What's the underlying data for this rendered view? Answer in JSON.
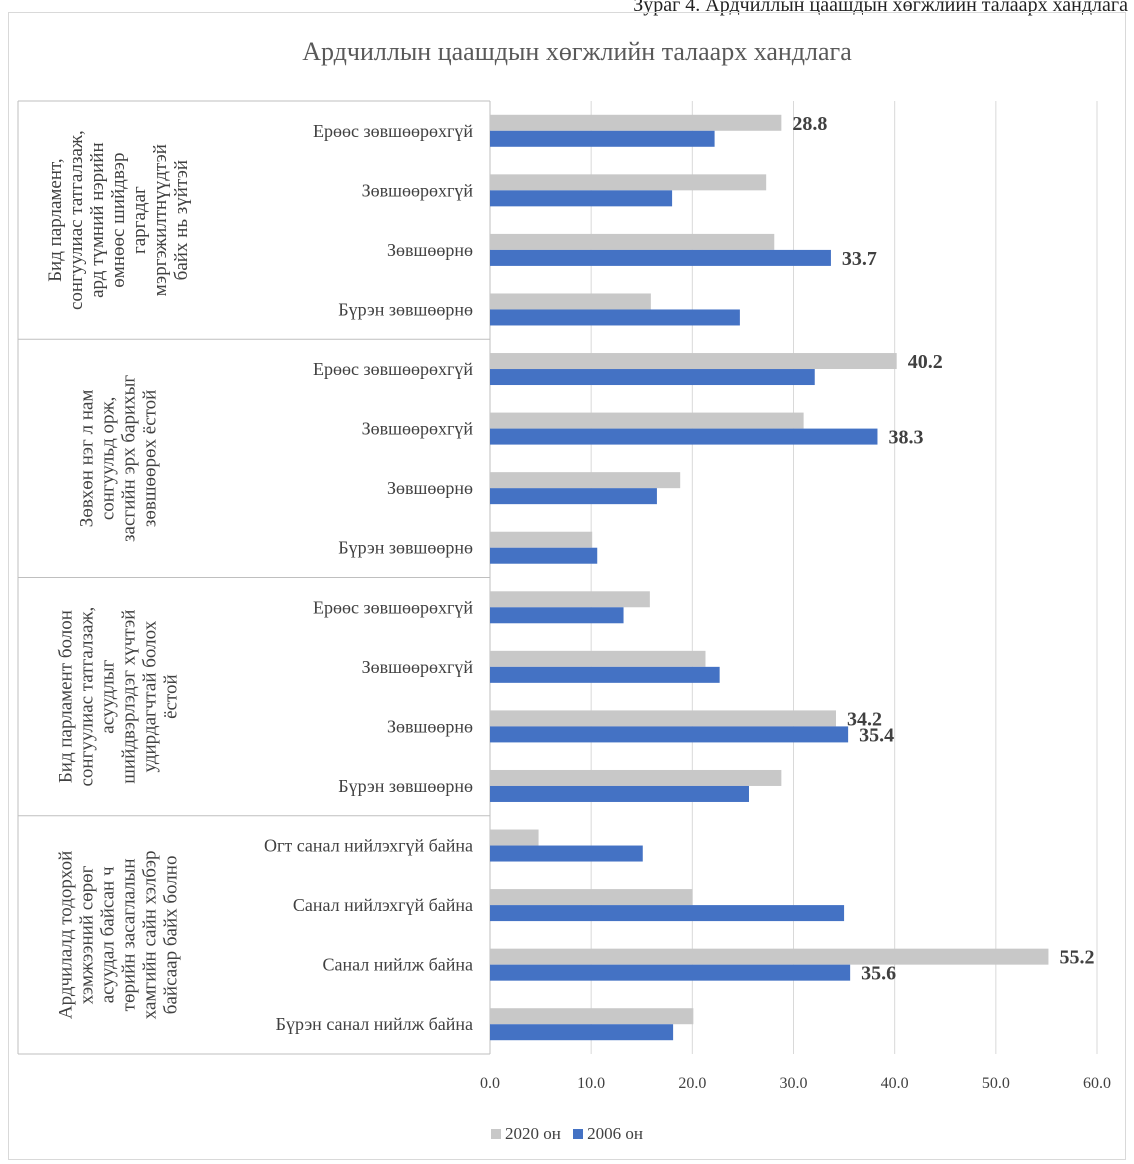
{
  "figure_caption": "Зураг 4. Ардчиллын цаашдын хөгжлийн талаарх хандлага",
  "chart_data": {
    "type": "bar",
    "orientation": "horizontal",
    "title": "Ардчиллын цаашдын хөгжлийн талаарх хандлага",
    "xlim": [
      0,
      60
    ],
    "x_ticks": [
      "0.0",
      "10.0",
      "20.0",
      "30.0",
      "40.0",
      "50.0",
      "60.0"
    ],
    "grid": true,
    "legend_position": "bottom",
    "colors": {
      "2020 он": "#c8c8c8",
      "2006 он": "#4472c4"
    },
    "groups": [
      {
        "label": "Бид парламент, сонгуулиас татгалзаж, ард түмний нэрийн өмнөөс шийдвэр гаргадаг мэргэжилтнүүдтэй байх нь зүйтэй",
        "label_lines": [
          "Бид парламент,",
          "сонгуулиас татгалзаж,",
          "ард түмний нэрийн",
          "өмнөөс шийдвэр",
          "гаргадаг",
          "мэргэжилтнүүдтэй",
          "байх нь зүйтэй"
        ],
        "categories": [
          "Ерөөс зөвшөөрөхгүй",
          "Зөвшөөрөхгүй",
          "Зөвшөөрнө",
          "Бүрэн зөвшөөрнө"
        ],
        "series": [
          {
            "name": "2020 он",
            "values": [
              28.8,
              27.3,
              28.1,
              15.9
            ]
          },
          {
            "name": "2006 он",
            "values": [
              22.2,
              18.0,
              33.7,
              24.7
            ]
          }
        ]
      },
      {
        "label": "Зөвхөн нэг л нам сонгуульд орж, засгийн эрх барихыг зөвшөөрөх ёстой",
        "label_lines": [
          "Зөвхөн нэг л нам",
          "сонгуульд орж,",
          "засгийн эрх барихыг",
          "зөвшөөрөх ёстой"
        ],
        "categories": [
          "Ерөөс зөвшөөрөхгүй",
          "Зөвшөөрөхгүй",
          "Зөвшөөрнө",
          "Бүрэн зөвшөөрнө"
        ],
        "series": [
          {
            "name": "2020 он",
            "values": [
              40.2,
              31.0,
              18.8,
              10.1
            ]
          },
          {
            "name": "2006 он",
            "values": [
              32.1,
              38.3,
              16.5,
              10.6
            ]
          }
        ]
      },
      {
        "label": "Бид парламент болон сонгуулиас татгалзаж, асуудлыг шийдвэрлэдэг хүчтэй удирдагчтай болох ёстой",
        "label_lines": [
          "Бид парламент болон",
          "сонгуулиас татгалзаж,",
          "асуудлыг",
          "шийдвэрлэдэг хүчтэй",
          "удирдагчтай болох",
          "ёстой"
        ],
        "categories": [
          "Ерөөс зөвшөөрөхгүй",
          "Зөвшөөрөхгүй",
          "Зөвшөөрнө",
          "Бүрэн зөвшөөрнө"
        ],
        "series": [
          {
            "name": "2020 он",
            "values": [
              15.8,
              21.3,
              34.2,
              28.8
            ]
          },
          {
            "name": "2006 он",
            "values": [
              13.2,
              22.7,
              35.4,
              25.6
            ]
          }
        ]
      },
      {
        "label": "Ардчилалд тодорхой хэмжээний сөрөг асуудал байсан ч төрийн засаглалын хамгийн сайн хэлбэр байсаар байх болно",
        "label_lines": [
          "Ардчилалд тодорхой",
          "хэмжээний сөрөг",
          "асуудал байсан ч",
          "төрийн засаглалын",
          "хамгийн сайн хэлбэр",
          "байсаар байх болно"
        ],
        "categories": [
          "Огт санал нийлэхгүй байна",
          "Санал нийлэхгүй байна",
          "Санал нийлж байна",
          "Бүрэн санал нийлж байна"
        ],
        "series": [
          {
            "name": "2020 он",
            "values": [
              4.8,
              20.0,
              55.2,
              20.1
            ]
          },
          {
            "name": "2006 он",
            "values": [
              15.1,
              35.0,
              35.6,
              18.1
            ]
          }
        ]
      }
    ],
    "data_labels": [
      {
        "group": 0,
        "category": 0,
        "series": "2020 он",
        "text": "28.8"
      },
      {
        "group": 0,
        "category": 2,
        "series": "2006 он",
        "text": "33.7"
      },
      {
        "group": 1,
        "category": 0,
        "series": "2020 он",
        "text": "40.2"
      },
      {
        "group": 1,
        "category": 1,
        "series": "2006 он",
        "text": "38.3"
      },
      {
        "group": 2,
        "category": 2,
        "series": "2020 он",
        "text": "34.2"
      },
      {
        "group": 2,
        "category": 2,
        "series": "2006 он",
        "text": "35.4"
      },
      {
        "group": 3,
        "category": 2,
        "series": "2020 он",
        "text": "55.2"
      },
      {
        "group": 3,
        "category": 2,
        "series": "2006 он",
        "text": "35.6"
      }
    ]
  },
  "legend": {
    "items": [
      {
        "label": "2020 он",
        "color": "#c8c8c8"
      },
      {
        "label": "2006 он",
        "color": "#4472c4"
      }
    ]
  }
}
